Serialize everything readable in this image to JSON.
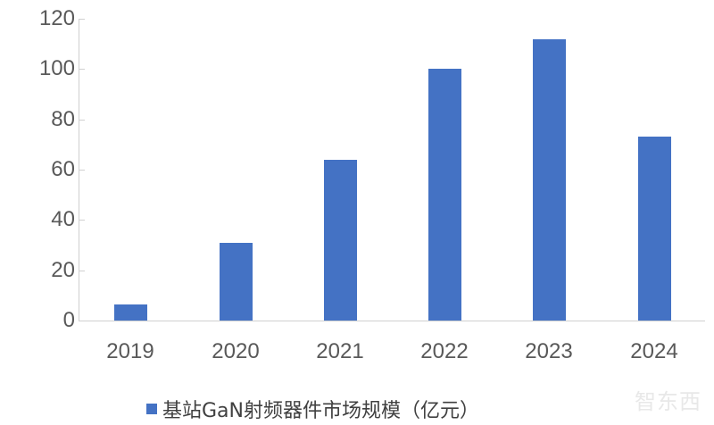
{
  "chart_data": {
    "type": "bar",
    "title": "",
    "xlabel": "",
    "ylabel": "",
    "categories": [
      "2019",
      "2020",
      "2021",
      "2022",
      "2023",
      "2024"
    ],
    "series": [
      {
        "name": "基站GaN射频器件市场规模（亿元）",
        "values": [
          6.5,
          31,
          64,
          100,
          112,
          73
        ],
        "color": "#4472c4"
      }
    ],
    "ylim": [
      0,
      120
    ],
    "yticks": [
      "0",
      "20",
      "40",
      "60",
      "80",
      "100",
      "120"
    ],
    "grid": false,
    "legend_position": "bottom"
  },
  "legend": {
    "label": "基站GaN射频器件市场规模（亿元）"
  },
  "watermark": "智东西"
}
